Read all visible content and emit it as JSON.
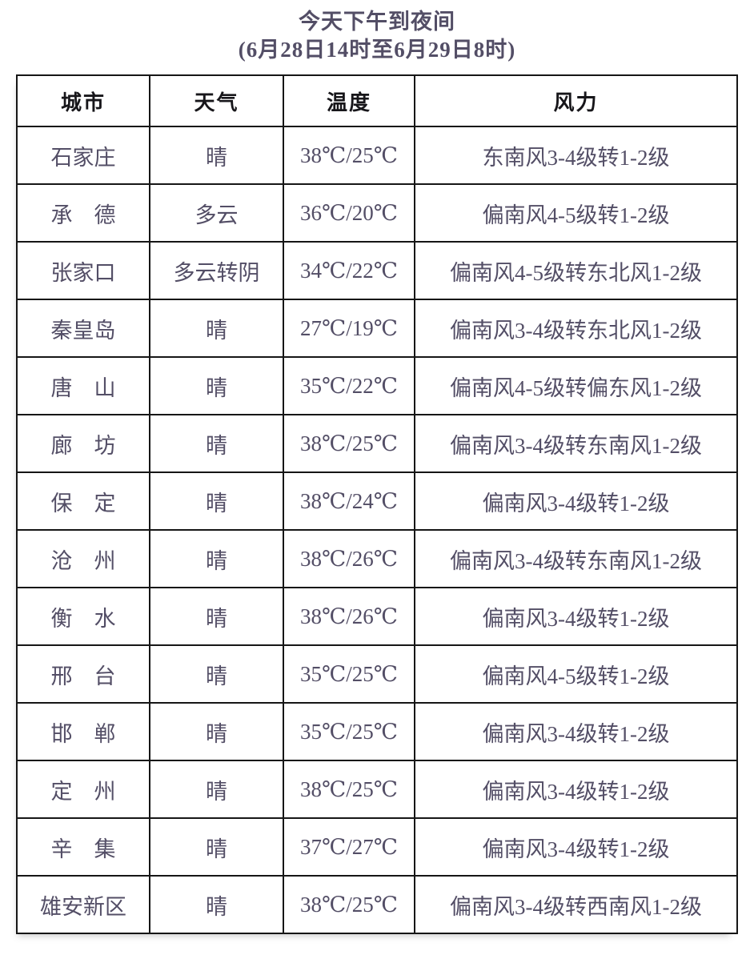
{
  "title": {
    "line1": "今天下午到夜间",
    "line2": "(6月28日14时至6月29日8时)"
  },
  "table": {
    "columns": [
      "城市",
      "天气",
      "温度",
      "风力"
    ],
    "rows": [
      {
        "city": "石家庄",
        "weather": "晴",
        "temp": "38℃/25℃",
        "wind": "东南风3-4级转1-2级"
      },
      {
        "city": "承　德",
        "weather": "多云",
        "temp": "36℃/20℃",
        "wind": "偏南风4-5级转1-2级"
      },
      {
        "city": "张家口",
        "weather": "多云转阴",
        "temp": "34℃/22℃",
        "wind": "偏南风4-5级转东北风1-2级"
      },
      {
        "city": "秦皇岛",
        "weather": "晴",
        "temp": "27℃/19℃",
        "wind": "偏南风3-4级转东北风1-2级"
      },
      {
        "city": "唐　山",
        "weather": "晴",
        "temp": "35℃/22℃",
        "wind": "偏南风4-5级转偏东风1-2级"
      },
      {
        "city": "廊　坊",
        "weather": "晴",
        "temp": "38℃/25℃",
        "wind": "偏南风3-4级转东南风1-2级"
      },
      {
        "city": "保　定",
        "weather": "晴",
        "temp": "38℃/24℃",
        "wind": "偏南风3-4级转1-2级"
      },
      {
        "city": "沧　州",
        "weather": "晴",
        "temp": "38℃/26℃",
        "wind": "偏南风3-4级转东南风1-2级"
      },
      {
        "city": "衡　水",
        "weather": "晴",
        "temp": "38℃/26℃",
        "wind": "偏南风3-4级转1-2级"
      },
      {
        "city": "邢　台",
        "weather": "晴",
        "temp": "35℃/25℃",
        "wind": "偏南风4-5级转1-2级"
      },
      {
        "city": "邯　郸",
        "weather": "晴",
        "temp": "35℃/25℃",
        "wind": "偏南风3-4级转1-2级"
      },
      {
        "city": "定　州",
        "weather": "晴",
        "temp": "38℃/25℃",
        "wind": "偏南风3-4级转1-2级"
      },
      {
        "city": "辛　集",
        "weather": "晴",
        "temp": "37℃/27℃",
        "wind": "偏南风3-4级转1-2级"
      },
      {
        "city": "雄安新区",
        "weather": "晴",
        "temp": "38℃/25℃",
        "wind": "偏南风3-4级转西南风1-2级"
      }
    ]
  },
  "colors": {
    "temperature_text": "#cc2427",
    "body_text": "#534e66",
    "header_text": "#17161a",
    "border": "#161616",
    "background": "#ffffff"
  }
}
